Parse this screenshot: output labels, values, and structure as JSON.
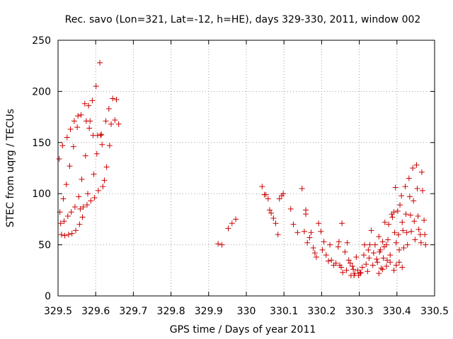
{
  "chart_data": {
    "type": "scatter",
    "title": "Rec. savo (Lon=321, Lat=-12, h=HE), days 329-330, 2011, window 002",
    "xlabel": "GPS time / Days of year 2011",
    "ylabel": "STEC from uqrg / TECUs",
    "xlim": [
      329.5,
      330.5
    ],
    "ylim": [
      0,
      250
    ],
    "grid": true,
    "marker": "plus",
    "color": "#cc0000",
    "x_ticks": [
      {
        "value": 329.5,
        "label": "329.5"
      },
      {
        "value": 329.6,
        "label": "329.6"
      },
      {
        "value": 329.7,
        "label": "329.7"
      },
      {
        "value": 329.8,
        "label": "329.8"
      },
      {
        "value": 329.9,
        "label": "329.9"
      },
      {
        "value": 330.0,
        "label": "330"
      },
      {
        "value": 330.1,
        "label": "330.1"
      },
      {
        "value": 330.2,
        "label": "330.2"
      },
      {
        "value": 330.3,
        "label": "330.3"
      },
      {
        "value": 330.4,
        "label": "330.4"
      },
      {
        "value": 330.5,
        "label": "330.5"
      }
    ],
    "y_ticks": [
      {
        "value": 0,
        "label": "0"
      },
      {
        "value": 50,
        "label": "50"
      },
      {
        "value": 100,
        "label": "100"
      },
      {
        "value": 150,
        "label": "150"
      },
      {
        "value": 200,
        "label": "200"
      },
      {
        "value": 250,
        "label": "250"
      }
    ],
    "series": [
      {
        "name": "STEC",
        "points": [
          [
            329.503,
            134
          ],
          [
            329.505,
            82
          ],
          [
            329.507,
            71
          ],
          [
            329.509,
            60
          ],
          [
            329.512,
            147
          ],
          [
            329.514,
            95
          ],
          [
            329.516,
            73
          ],
          [
            329.518,
            59
          ],
          [
            329.522,
            109
          ],
          [
            329.524,
            155
          ],
          [
            329.526,
            78
          ],
          [
            329.528,
            60
          ],
          [
            329.531,
            127
          ],
          [
            329.533,
            163
          ],
          [
            329.535,
            82
          ],
          [
            329.537,
            61
          ],
          [
            329.541,
            146
          ],
          [
            329.543,
            171
          ],
          [
            329.545,
            87
          ],
          [
            329.547,
            64
          ],
          [
            329.551,
            165
          ],
          [
            329.553,
            176
          ],
          [
            329.555,
            97
          ],
          [
            329.557,
            70
          ],
          [
            329.559,
            85
          ],
          [
            329.561,
            177
          ],
          [
            329.563,
            114
          ],
          [
            329.565,
            77
          ],
          [
            329.567,
            87
          ],
          [
            329.571,
            188
          ],
          [
            329.573,
            137
          ],
          [
            329.575,
            171
          ],
          [
            329.577,
            89
          ],
          [
            329.579,
            100
          ],
          [
            329.581,
            186
          ],
          [
            329.583,
            164
          ],
          [
            329.585,
            171
          ],
          [
            329.587,
            93
          ],
          [
            329.591,
            191
          ],
          [
            329.593,
            157
          ],
          [
            329.595,
            119
          ],
          [
            329.597,
            96
          ],
          [
            329.601,
            205
          ],
          [
            329.603,
            139
          ],
          [
            329.605,
            157
          ],
          [
            329.607,
            103
          ],
          [
            329.611,
            228
          ],
          [
            329.613,
            157
          ],
          [
            329.615,
            158
          ],
          [
            329.617,
            148
          ],
          [
            329.619,
            107
          ],
          [
            329.623,
            113
          ],
          [
            329.627,
            171
          ],
          [
            329.629,
            126
          ],
          [
            329.635,
            183
          ],
          [
            329.637,
            147
          ],
          [
            329.641,
            168
          ],
          [
            329.645,
            193
          ],
          [
            329.651,
            172
          ],
          [
            329.655,
            192
          ],
          [
            329.661,
            168
          ],
          [
            329.925,
            51
          ],
          [
            329.935,
            50
          ],
          [
            329.952,
            66
          ],
          [
            329.962,
            71
          ],
          [
            329.972,
            75
          ],
          [
            330.042,
            107
          ],
          [
            330.048,
            99
          ],
          [
            330.052,
            99
          ],
          [
            330.058,
            95
          ],
          [
            330.062,
            84
          ],
          [
            330.066,
            81
          ],
          [
            330.072,
            76
          ],
          [
            330.078,
            71
          ],
          [
            330.084,
            60
          ],
          [
            330.088,
            95
          ],
          [
            330.094,
            98
          ],
          [
            330.098,
            100
          ],
          [
            330.118,
            85
          ],
          [
            330.125,
            70
          ],
          [
            330.136,
            62
          ],
          [
            330.148,
            105
          ],
          [
            330.154,
            63
          ],
          [
            330.158,
            84
          ],
          [
            330.158,
            80
          ],
          [
            330.162,
            52
          ],
          [
            330.168,
            57
          ],
          [
            330.172,
            62
          ],
          [
            330.178,
            47
          ],
          [
            330.182,
            42
          ],
          [
            330.186,
            38
          ],
          [
            330.192,
            71
          ],
          [
            330.198,
            63
          ],
          [
            330.202,
            45
          ],
          [
            330.206,
            53
          ],
          [
            330.212,
            40
          ],
          [
            330.218,
            34
          ],
          [
            330.222,
            50
          ],
          [
            330.226,
            35
          ],
          [
            330.232,
            30
          ],
          [
            330.238,
            32
          ],
          [
            330.244,
            48
          ],
          [
            330.246,
            53
          ],
          [
            330.248,
            30
          ],
          [
            330.252,
            28
          ],
          [
            330.254,
            71
          ],
          [
            330.256,
            23
          ],
          [
            330.262,
            43
          ],
          [
            330.266,
            25
          ],
          [
            330.268,
            52
          ],
          [
            330.272,
            35
          ],
          [
            330.276,
            32
          ],
          [
            330.278,
            20
          ],
          [
            330.282,
            29
          ],
          [
            330.284,
            26
          ],
          [
            330.286,
            20
          ],
          [
            330.288,
            22
          ],
          [
            330.292,
            38
          ],
          [
            330.296,
            25
          ],
          [
            330.298,
            20
          ],
          [
            330.302,
            22
          ],
          [
            330.304,
            23
          ],
          [
            330.308,
            28
          ],
          [
            330.312,
            40
          ],
          [
            330.314,
            50
          ],
          [
            330.318,
            31
          ],
          [
            330.322,
            24
          ],
          [
            330.324,
            45
          ],
          [
            330.326,
            37
          ],
          [
            330.328,
            50
          ],
          [
            330.332,
            64
          ],
          [
            330.336,
            30
          ],
          [
            330.338,
            42
          ],
          [
            330.342,
            50
          ],
          [
            330.346,
            36
          ],
          [
            330.348,
            33
          ],
          [
            330.352,
            58
          ],
          [
            330.354,
            43
          ],
          [
            330.356,
            45
          ],
          [
            330.358,
            27
          ],
          [
            330.362,
            53
          ],
          [
            330.364,
            37
          ],
          [
            330.366,
            48
          ],
          [
            330.368,
            72
          ],
          [
            330.372,
            50
          ],
          [
            330.374,
            35
          ],
          [
            330.376,
            55
          ],
          [
            330.378,
            70
          ],
          [
            330.382,
            40
          ],
          [
            330.386,
            80
          ],
          [
            330.388,
            77
          ],
          [
            330.392,
            82
          ],
          [
            330.394,
            62
          ],
          [
            330.396,
            106
          ],
          [
            330.398,
            52
          ],
          [
            330.402,
            83
          ],
          [
            330.404,
            60
          ],
          [
            330.406,
            45
          ],
          [
            330.408,
            89
          ],
          [
            330.412,
            98
          ],
          [
            330.414,
            72
          ],
          [
            330.416,
            64
          ],
          [
            330.418,
            47
          ],
          [
            330.422,
            107
          ],
          [
            330.424,
            80
          ],
          [
            330.426,
            62
          ],
          [
            330.428,
            50
          ],
          [
            330.432,
            115
          ],
          [
            330.434,
            97
          ],
          [
            330.436,
            79
          ],
          [
            330.438,
            63
          ],
          [
            330.442,
            125
          ],
          [
            330.444,
            93
          ],
          [
            330.446,
            73
          ],
          [
            330.448,
            55
          ],
          [
            330.452,
            128
          ],
          [
            330.454,
            105
          ],
          [
            330.456,
            78
          ],
          [
            330.458,
            65
          ],
          [
            330.462,
            60
          ],
          [
            330.464,
            52
          ],
          [
            330.466,
            121
          ],
          [
            330.468,
            103
          ],
          [
            330.472,
            74
          ],
          [
            330.474,
            60
          ],
          [
            330.476,
            50
          ],
          [
            330.392,
            25
          ],
          [
            330.398,
            30
          ],
          [
            330.406,
            33
          ],
          [
            330.414,
            28
          ],
          [
            330.352,
            22
          ],
          [
            330.362,
            26
          ],
          [
            330.372,
            29
          ],
          [
            330.382,
            33
          ]
        ]
      }
    ]
  }
}
